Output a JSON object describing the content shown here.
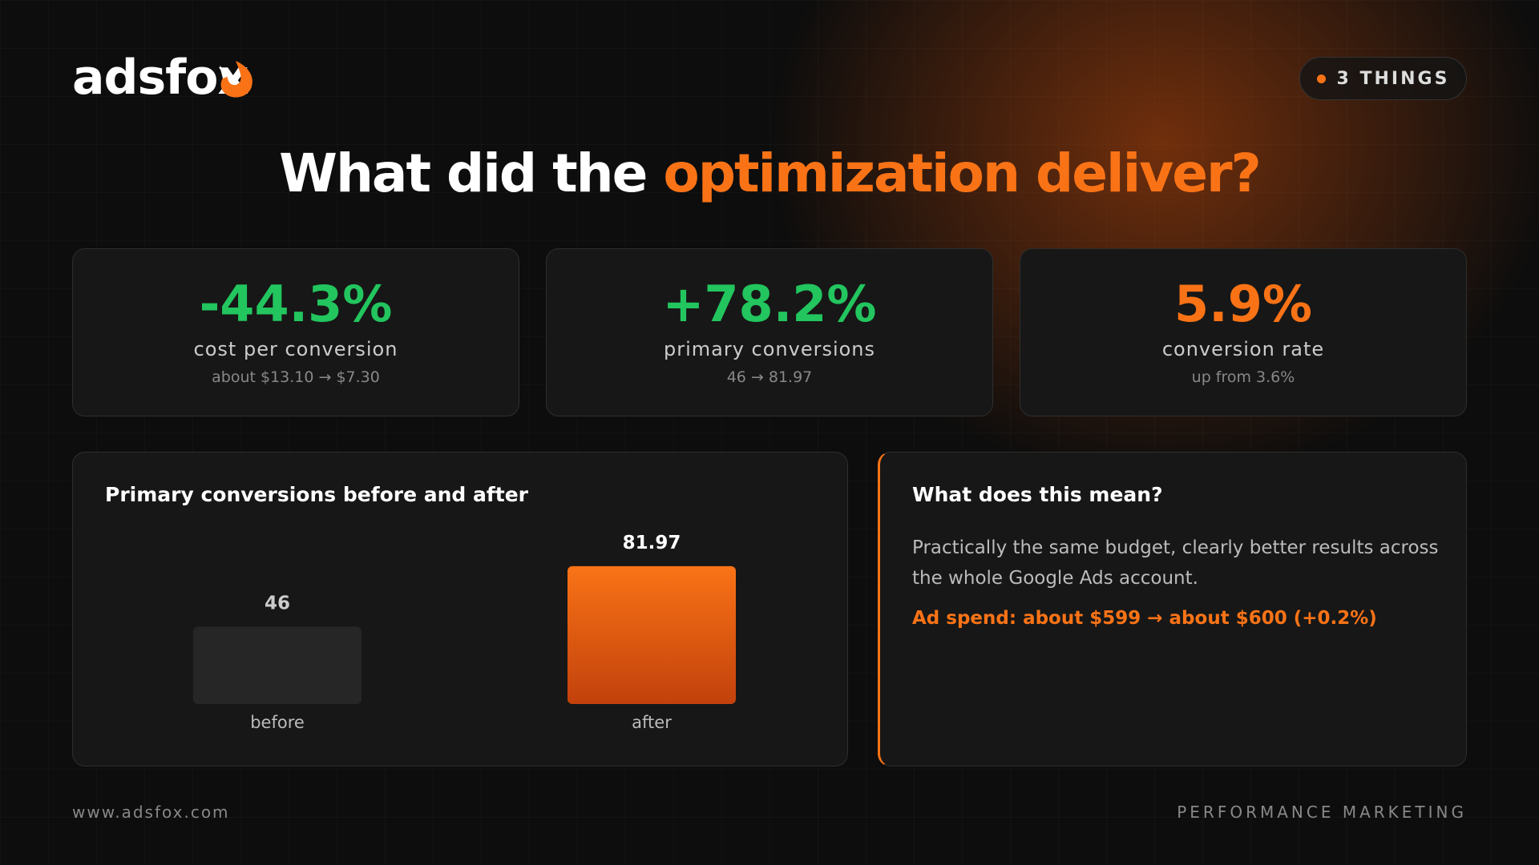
{
  "header": {
    "logo": "adsfox",
    "badge": "3 THINGS"
  },
  "title": {
    "lead": "What did the",
    "highlight": "optimization deliver?"
  },
  "kpis": [
    {
      "value": "-44.3%",
      "label": "cost per conversion",
      "detail": "about $13.10 → $7.30",
      "color": "#22c55e"
    },
    {
      "value": "+78.2%",
      "label": "primary conversions",
      "detail": "46 → 81.97",
      "color": "#22c55e"
    },
    {
      "value": "5.9%",
      "label": "conversion rate",
      "detail": "up from 3.6%",
      "color": "#f97316"
    }
  ],
  "chart_data": {
    "type": "bar",
    "title": "Primary conversions before and after",
    "categories": [
      "before",
      "after"
    ],
    "values": [
      46,
      81.97
    ],
    "colors": [
      "#262626",
      "#f97316"
    ]
  },
  "explanation": {
    "heading": "What does this mean?",
    "body": "Practically the same budget, clearly better results across the whole Google Ads account.",
    "highlight": "Ad spend: about $599 → about $600 (+0.2%)"
  },
  "footer": {
    "url": "www.adsfox.com",
    "tagline": "PERFORMANCE MARKETING"
  }
}
